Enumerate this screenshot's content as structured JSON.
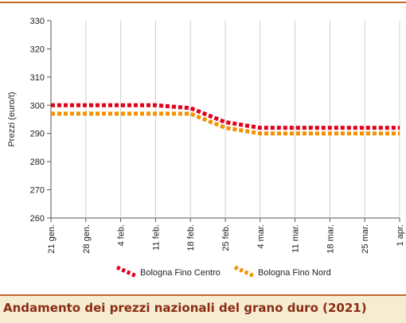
{
  "caption": "Andamento dei prezzi nazionali del grano duro (2021)",
  "chart_data": {
    "type": "line",
    "ylabel": "Prezzi (euro/t)",
    "ylim": [
      260,
      330
    ],
    "yticks": [
      260,
      270,
      280,
      290,
      300,
      310,
      320,
      330
    ],
    "categories": [
      "21 gen.",
      "28 gen.",
      "4 feb.",
      "11 feb.",
      "18 feb.",
      "25 feb.",
      "4 mar.",
      "11 mar.",
      "18 mar.",
      "25 mar.",
      "1 apr."
    ],
    "grid": "vertical",
    "legend_position": "bottom",
    "series": [
      {
        "name": "Bologna Fino Centro",
        "color": "#e2001a",
        "values": [
          300,
          300,
          300,
          300,
          299,
          294,
          292,
          292,
          292,
          292,
          292
        ]
      },
      {
        "name": "Bologna Fino Nord",
        "color": "#f39200",
        "values": [
          297,
          297,
          297,
          297,
          297,
          292,
          290,
          290,
          290,
          290,
          290
        ]
      }
    ]
  }
}
